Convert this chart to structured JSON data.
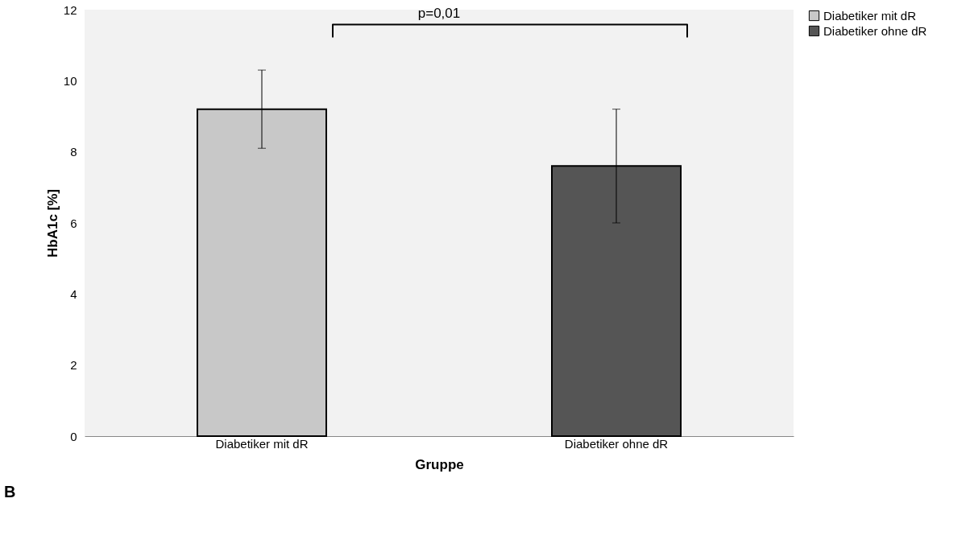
{
  "chart_data": {
    "type": "bar",
    "categories": [
      "Diabetiker mit dR",
      "Diabetiker ohne dR"
    ],
    "xlabel": "Gruppe",
    "ylabel": "HbA1c [%]",
    "series": [
      {
        "name": "Diabetiker mit dR",
        "color": "#c8c8c8",
        "values": [
          9.2,
          null
        ],
        "errors": [
          1.1,
          null
        ]
      },
      {
        "name": "Diabetiker ohne dR",
        "color": "#555555",
        "values": [
          null,
          7.6
        ],
        "errors": [
          null,
          1.6
        ]
      }
    ],
    "ylim": [
      0,
      12
    ],
    "yticks": [
      0,
      2,
      4,
      6,
      8,
      10,
      12
    ],
    "grid": false,
    "legend": "right",
    "annotations": [
      "p=0,01",
      "B"
    ]
  }
}
